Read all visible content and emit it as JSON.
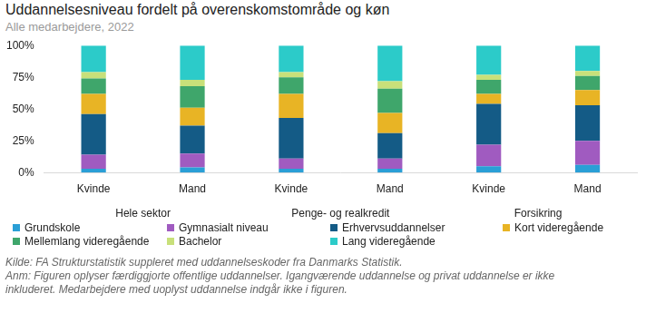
{
  "chart_data": {
    "type": "bar",
    "stacked": true,
    "grid": false,
    "title": "Uddannelsesniveau fordelt på overenskomstområde og køn",
    "subtitle": "Alle medarbejdere,  2022",
    "categories": [
      "Kvinde",
      "Mand",
      "Kvinde",
      "Mand",
      "Kvinde",
      "Mand"
    ],
    "category_groups": [
      "Hele sektor",
      "Penge- og realkredit",
      "Forsikring"
    ],
    "ylim": [
      0,
      100
    ],
    "yticks": [
      {
        "value": 0,
        "label": "0%"
      },
      {
        "value": 25,
        "label": "25%"
      },
      {
        "value": 50,
        "label": "50%"
      },
      {
        "value": 75,
        "label": "75%"
      },
      {
        "value": 100,
        "label": "100%"
      }
    ],
    "series": [
      {
        "name": "Grundskole",
        "color": "#2a9fd6",
        "values": [
          3,
          4,
          3,
          3,
          5,
          6
        ]
      },
      {
        "name": "Gymnasialt niveau",
        "color": "#a05bc0",
        "values": [
          11,
          11,
          8,
          8,
          17,
          19
        ]
      },
      {
        "name": "Erhvervsuddannelser",
        "color": "#145b86",
        "values": [
          32,
          22,
          32,
          20,
          32,
          28
        ]
      },
      {
        "name": "Kort videregående",
        "color": "#e8b425",
        "values": [
          16,
          14,
          19,
          16,
          8,
          12
        ]
      },
      {
        "name": "Mellemlang videregående",
        "color": "#3fa66b",
        "values": [
          12,
          17,
          13,
          19,
          11,
          11
        ]
      },
      {
        "name": "Bachelor",
        "color": "#c8e07a",
        "values": [
          5,
          5,
          4,
          6,
          4,
          4
        ]
      },
      {
        "name": "Lang videregående",
        "color": "#2ccbc9",
        "values": [
          21,
          27,
          21,
          28,
          23,
          20
        ]
      }
    ],
    "annotations": [
      "Kilde: FA Strukturstatistik suppleret med uddannelseskoder fra Danmarks Statistik.",
      "Anm: Figuren oplyser færdiggjorte offentlige uddannelser. Igangværende uddannelse og privat uddannelse er ikke inkluderet. Medarbejdere med uoplyst uddannelse indgår ikke i figuren."
    ]
  }
}
